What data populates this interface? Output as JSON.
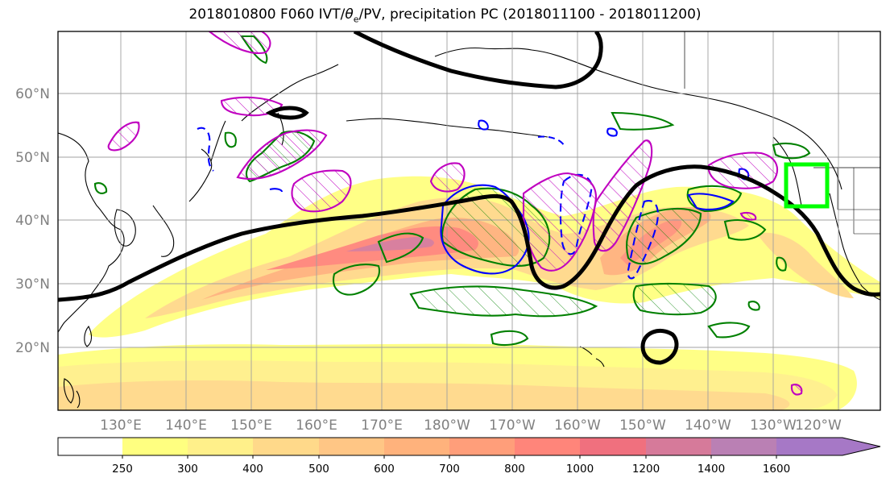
{
  "title": "2018010800 F060 IVT/θe/PV, precipitation PC (2018011100 - 2018011200)",
  "title_parts": {
    "before": "2018010800 F060 IVT/",
    "theta": "θ",
    "sub": "e",
    "after": "/PV, precipitation PC (2018011100 - 2018011200)"
  },
  "map": {
    "lat_labels": [
      "60°N",
      "50°N",
      "40°N",
      "30°N",
      "20°N"
    ],
    "lon_labels": [
      "130°E",
      "140°E",
      "150°E",
      "160°E",
      "170°E",
      "180°W",
      "170°W",
      "160°W",
      "150°W",
      "140°W",
      "130°W",
      "120°W"
    ],
    "colors": {
      "coast": "#000000",
      "grid": "#a0a0a0",
      "theta_contour": "#000000",
      "pv_contour": "#c000c0",
      "precip_contour": "#008000",
      "precip_neg_contour": "#0000ff",
      "target_box": "#00ff00"
    }
  },
  "colorbar": {
    "levels": [
      "250",
      "300",
      "400",
      "500",
      "600",
      "700",
      "800",
      "1000",
      "1200",
      "1400",
      "1600"
    ],
    "colors": [
      "#ffffff",
      "#ffff80",
      "#fff08a",
      "#ffd98a",
      "#ffc685",
      "#ffb27c",
      "#ff9e7a",
      "#ff857a",
      "#f0707e",
      "#d67a9a",
      "#ba80b4",
      "#a678c6"
    ]
  }
}
